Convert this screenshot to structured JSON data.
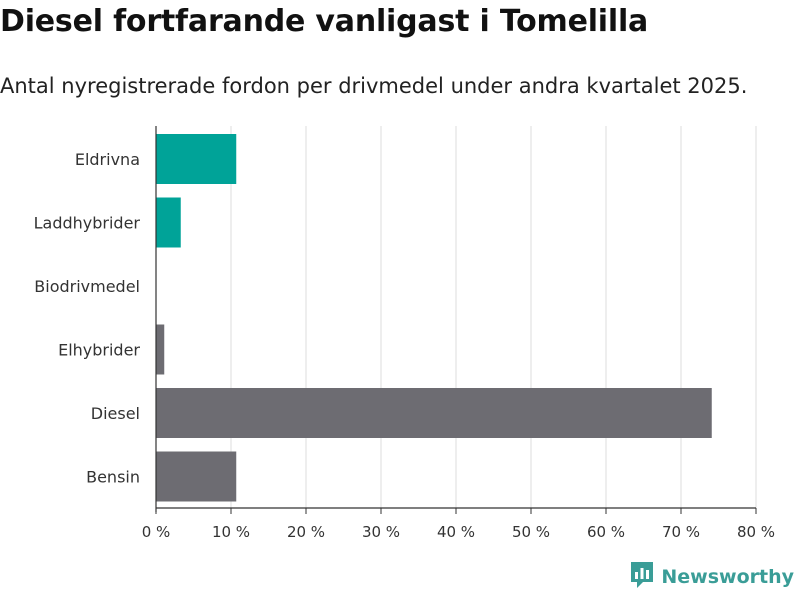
{
  "header": {
    "title": "Diesel fortfarande vanligast i Tomelilla",
    "subtitle": "Antal nyregistrerade fordon per drivmedel under andra kvartalet 2025."
  },
  "brand": {
    "name": "Newsworthy",
    "icon": "newsworthy-logo-icon",
    "color": "#3a9d97"
  },
  "chart_data": {
    "type": "bar",
    "orientation": "horizontal",
    "categories": [
      "Eldrivna",
      "Laddhybrider",
      "Biodrivmedel",
      "Elhybrider",
      "Diesel",
      "Bensin"
    ],
    "values": [
      10.7,
      3.3,
      0,
      1.1,
      74.1,
      10.7
    ],
    "colors": [
      "#00a398",
      "#00a398",
      "#6d6c72",
      "#6d6c72",
      "#6d6c72",
      "#6d6c72"
    ],
    "xlim": [
      0,
      80
    ],
    "xticks": [
      0,
      10,
      20,
      30,
      40,
      50,
      60,
      70,
      80
    ],
    "tick_labels": [
      "0 %",
      "10 %",
      "20 %",
      "30 %",
      "40 %",
      "50 %",
      "60 %",
      "70 %",
      "80 %"
    ],
    "grid": "vertical",
    "title": "Diesel fortfarande vanligast i Tomelilla",
    "xlabel": "",
    "ylabel": ""
  }
}
